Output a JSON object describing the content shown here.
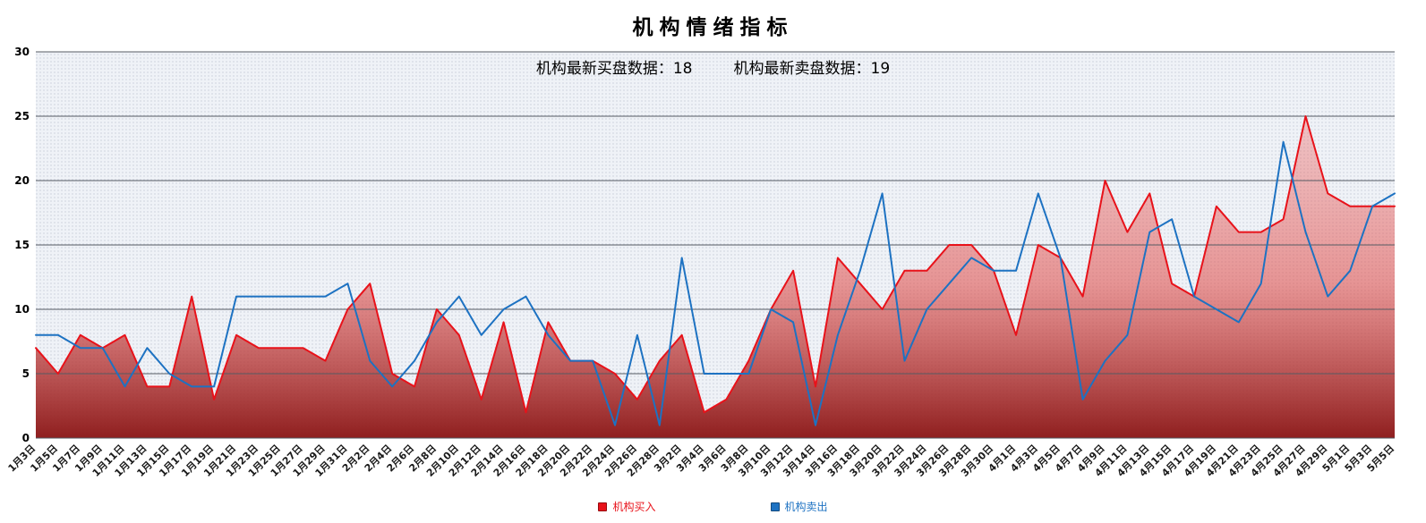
{
  "title": "机构情绪指标",
  "readout": {
    "buy_label": "机构最新买盘数据：",
    "buy_value": "18",
    "sell_label": "机构最新卖盘数据：",
    "sell_value": "19"
  },
  "chart_data": {
    "type": "line",
    "title": "机构情绪指标",
    "xlabel": "",
    "ylabel": "",
    "ylim": [
      0,
      30
    ],
    "yticks": [
      0,
      5,
      10,
      15,
      20,
      25,
      30
    ],
    "grid": true,
    "legend_position": "bottom",
    "categories": [
      "1月3日",
      "1月5日",
      "1月7日",
      "1月9日",
      "1月11日",
      "1月13日",
      "1月15日",
      "1月17日",
      "1月19日",
      "1月21日",
      "1月23日",
      "1月25日",
      "1月27日",
      "1月29日",
      "1月31日",
      "2月2日",
      "2月4日",
      "2月6日",
      "2月8日",
      "2月10日",
      "2月12日",
      "2月14日",
      "2月16日",
      "2月18日",
      "2月20日",
      "2月22日",
      "2月24日",
      "2月26日",
      "2月28日",
      "3月2日",
      "3月4日",
      "3月6日",
      "3月8日",
      "3月10日",
      "3月12日",
      "3月14日",
      "3月16日",
      "3月18日",
      "3月20日",
      "3月22日",
      "3月24日",
      "3月26日",
      "3月28日",
      "3月30日",
      "4月1日",
      "4月3日",
      "4月5日",
      "4月7日",
      "4月9日",
      "4月11日",
      "4月13日",
      "4月15日",
      "4月17日",
      "4月19日",
      "4月21日",
      "4月23日",
      "4月25日",
      "4月27日",
      "4月29日",
      "5月1日",
      "5月3日",
      "5月5日"
    ],
    "series": [
      {
        "name": "机构买入",
        "color": "#e8121a",
        "area": true,
        "values": [
          7,
          5,
          8,
          7,
          8,
          4,
          4,
          11,
          3,
          8,
          7,
          7,
          7,
          6,
          10,
          12,
          5,
          4,
          10,
          8,
          3,
          9,
          2,
          9,
          6,
          6,
          5,
          3,
          6,
          8,
          2,
          3,
          6,
          10,
          13,
          4,
          14,
          12,
          10,
          13,
          13,
          15,
          15,
          13,
          8,
          15,
          14,
          11,
          20,
          16,
          19,
          12,
          11,
          18,
          16,
          16,
          17,
          25,
          19,
          18,
          18,
          18
        ]
      },
      {
        "name": "机构卖出",
        "color": "#1d72c2",
        "area": false,
        "values": [
          8,
          8,
          7,
          7,
          4,
          7,
          5,
          4,
          4,
          11,
          11,
          11,
          11,
          11,
          12,
          6,
          4,
          6,
          9,
          11,
          8,
          10,
          11,
          8,
          6,
          6,
          1,
          8,
          1,
          14,
          5,
          5,
          5,
          10,
          9,
          1,
          8,
          13,
          19,
          6,
          10,
          12,
          14,
          13,
          13,
          19,
          14,
          3,
          6,
          8,
          16,
          17,
          11,
          10,
          9,
          12,
          23,
          16,
          11,
          13,
          18,
          19
        ]
      }
    ],
    "style": {
      "plot_bg": "#eff2f7",
      "plot_dot": "#c7cdd8",
      "grid": "#565b63",
      "area_top": "rgba(243,130,128,0.30)",
      "area_mid": "rgba(224,85,82,0.60)",
      "area_bottom": "rgba(140,24,24,0.97)"
    }
  }
}
